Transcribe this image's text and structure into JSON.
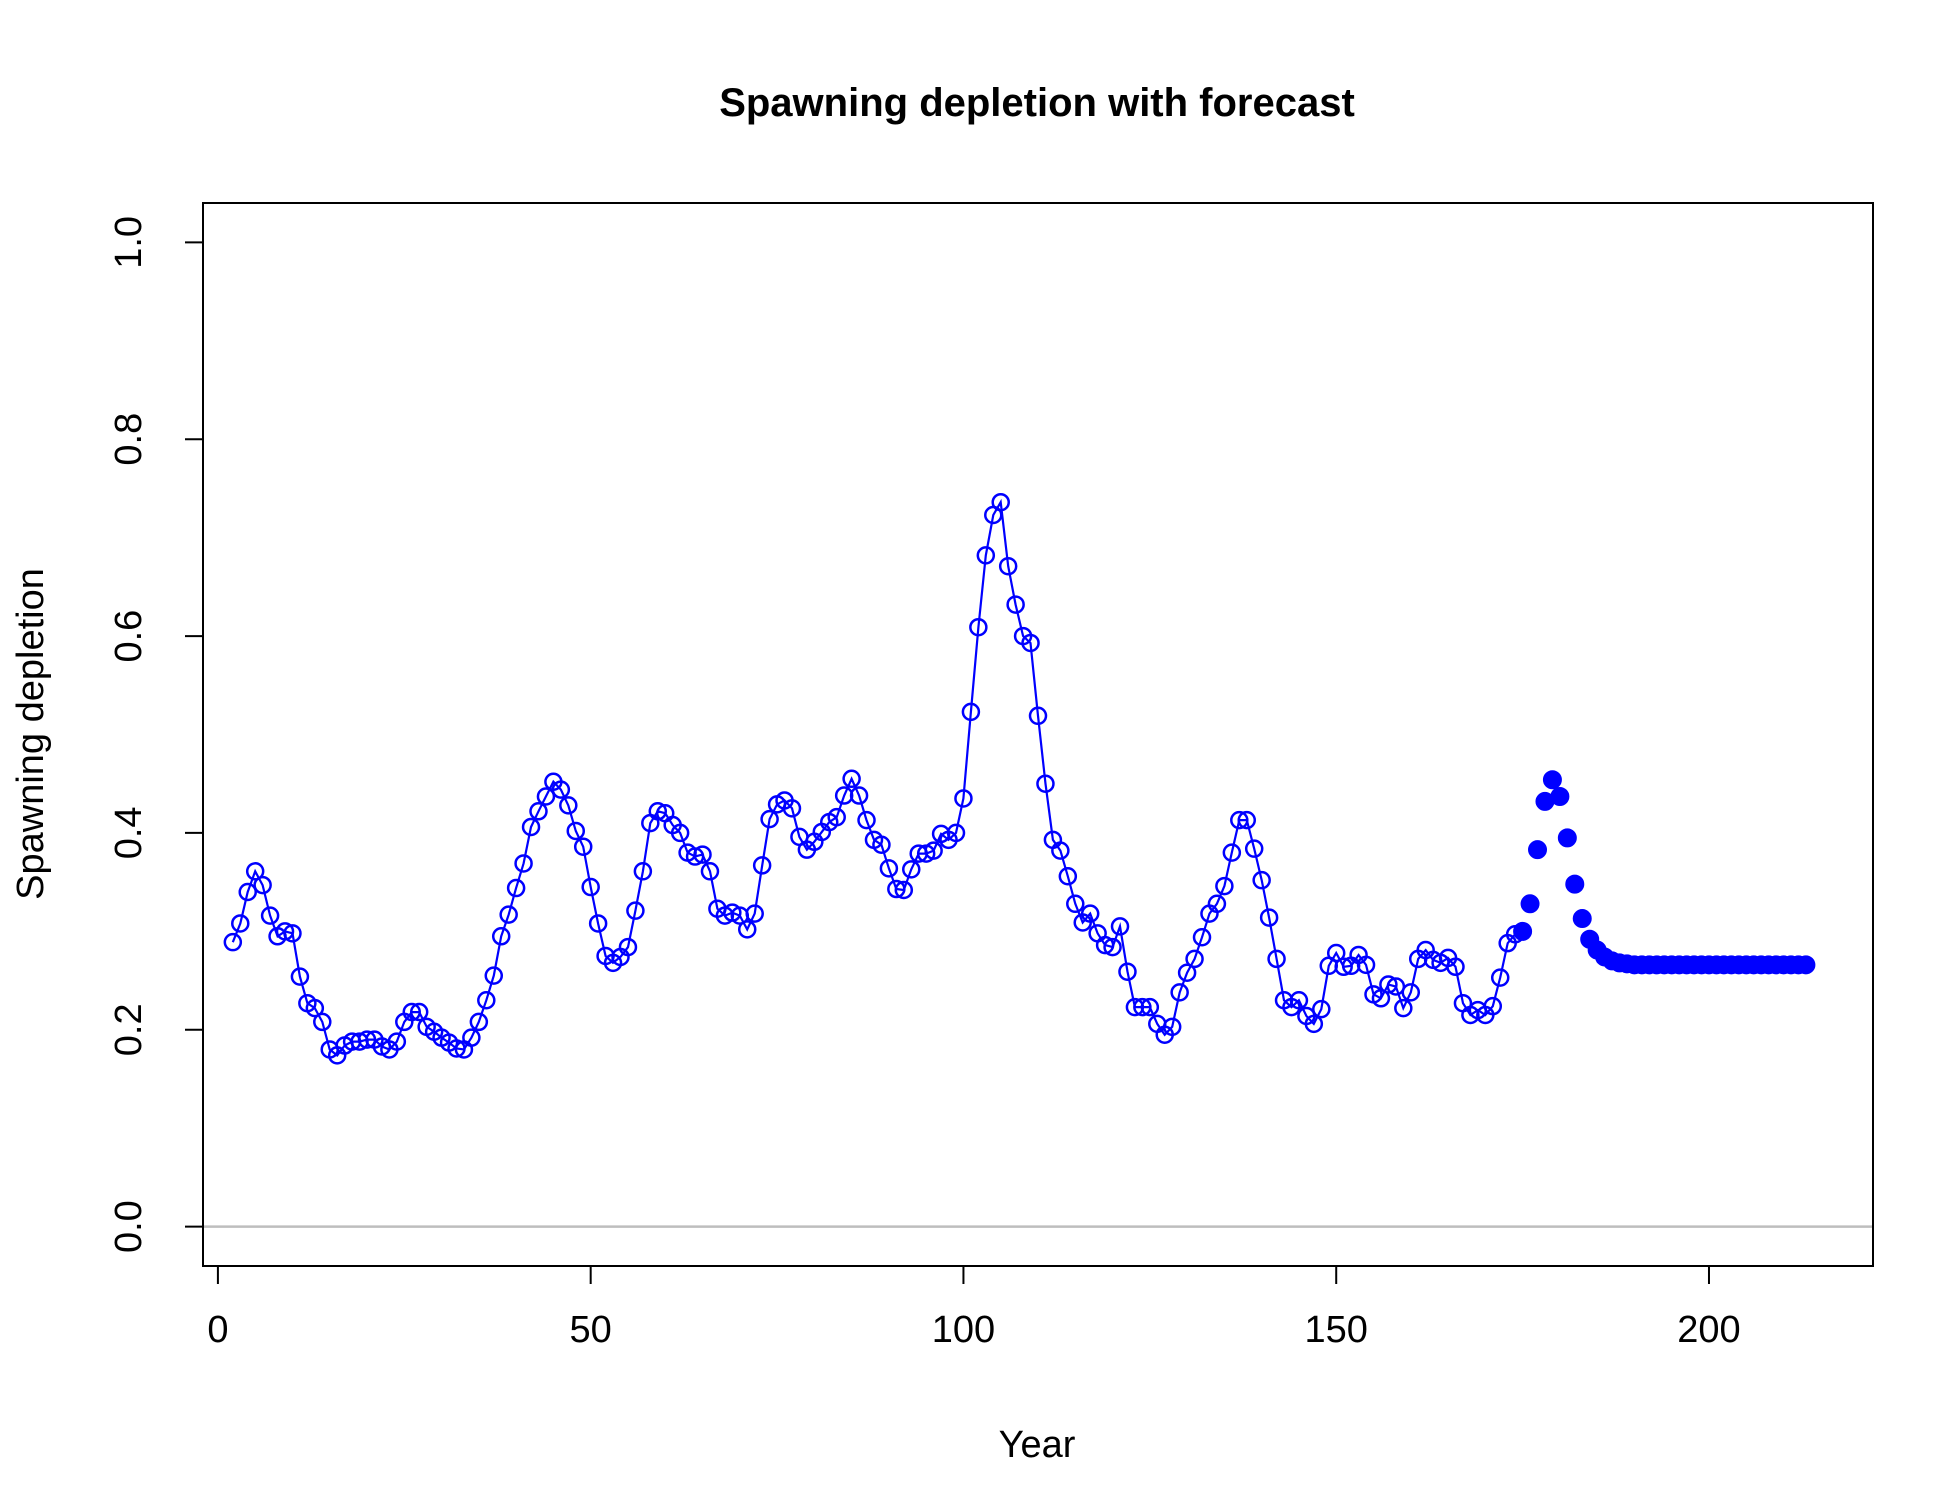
{
  "chart_data": {
    "type": "line",
    "title": "Spawning depletion with forecast",
    "xlabel": "Year",
    "ylabel": "Spawning depletion",
    "xlim": [
      -2,
      222
    ],
    "ylim": [
      -0.04,
      1.04
    ],
    "x_ticks": [
      0,
      50,
      100,
      150,
      200
    ],
    "x_tick_labels": [
      "0",
      "50",
      "100",
      "150",
      "200"
    ],
    "y_ticks": [
      0.0,
      0.2,
      0.4,
      0.6,
      0.8,
      1.0
    ],
    "y_tick_labels": [
      "0.0",
      "0.2",
      "0.4",
      "0.6",
      "0.8",
      "1.0"
    ],
    "reference_line": {
      "y": 0,
      "color": "#bebebe"
    },
    "grid": false,
    "colors": {
      "series": "#0000ff",
      "axis": "#000000"
    },
    "series": [
      {
        "marker": "open-circle",
        "line": true,
        "x_start": 2,
        "values": [
          0.289,
          0.308,
          0.34,
          0.361,
          0.347,
          0.316,
          0.295,
          0.3,
          0.298,
          0.254,
          0.227,
          0.222,
          0.208,
          0.18,
          0.174,
          0.184,
          0.188,
          0.188,
          0.19,
          0.19,
          0.183,
          0.18,
          0.188,
          0.208,
          0.218,
          0.218,
          0.203,
          0.198,
          0.192,
          0.187,
          0.181,
          0.18,
          0.192,
          0.208,
          0.23,
          0.255,
          0.295,
          0.317,
          0.344,
          0.369,
          0.406,
          0.422,
          0.437,
          0.452,
          0.444,
          0.428,
          0.402,
          0.386,
          0.345,
          0.308,
          0.275,
          0.268,
          0.274,
          0.284,
          0.321,
          0.361,
          0.41,
          0.422,
          0.42,
          0.408,
          0.4,
          0.38,
          0.376,
          0.378,
          0.361,
          0.323,
          0.316,
          0.319,
          0.316,
          0.302,
          0.318,
          0.367,
          0.414,
          0.429,
          0.433,
          0.425,
          0.396,
          0.383,
          0.391,
          0.401,
          0.411,
          0.416,
          0.438,
          0.455,
          0.438,
          0.413,
          0.393,
          0.388,
          0.364,
          0.343,
          0.342,
          0.363,
          0.379,
          0.379,
          0.382,
          0.399,
          0.393,
          0.4,
          0.435,
          0.523,
          0.609,
          0.682,
          0.723,
          0.736,
          0.671,
          0.632,
          0.6,
          0.593,
          0.519,
          0.45,
          0.393,
          0.382,
          0.356,
          0.328,
          0.309,
          0.318,
          0.298,
          0.286,
          0.284,
          0.305,
          0.259,
          0.223,
          0.223,
          0.223,
          0.206,
          0.195,
          0.203,
          0.238,
          0.258,
          0.272,
          0.294,
          0.318,
          0.328,
          0.346,
          0.38,
          0.413,
          0.413,
          0.384,
          0.352,
          0.314,
          0.272,
          0.23,
          0.223,
          0.23,
          0.214,
          0.206,
          0.221,
          0.265,
          0.278,
          0.264,
          0.265,
          0.276,
          0.266,
          0.236,
          0.232,
          0.246,
          0.244,
          0.222,
          0.238,
          0.272,
          0.281,
          0.271,
          0.268,
          0.273,
          0.264,
          0.227,
          0.215,
          0.22,
          0.215,
          0.224,
          0.253,
          0.288,
          0.297
        ]
      },
      {
        "marker": "filled-circle",
        "line": false,
        "x_start": 175,
        "values": [
          0.3,
          0.328,
          0.383,
          0.432,
          0.454,
          0.437,
          0.395,
          0.348,
          0.313,
          0.292,
          0.281,
          0.274,
          0.27,
          0.268,
          0.267,
          0.266,
          0.266,
          0.266,
          0.266,
          0.266,
          0.266,
          0.266,
          0.266,
          0.266,
          0.266,
          0.266,
          0.266,
          0.266,
          0.266,
          0.266,
          0.266,
          0.266,
          0.266,
          0.266,
          0.266,
          0.266,
          0.266,
          0.266,
          0.266
        ]
      }
    ]
  }
}
